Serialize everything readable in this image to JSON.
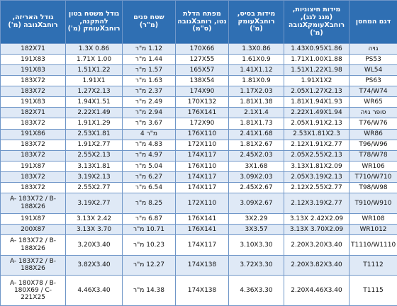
{
  "table": {
    "header": [
      "דגם המחסן",
      "מידות חיצוניות, (מגג לגג), רוחבXעומקXגובה (מ')",
      "מידות בסיס, רוחבXעומק (מ')",
      "מפתח הדלת נטו, רוחבXגובה (ס\"מ)",
      "שטח פנים (מ\"ר)",
      "גודל משטח בטון להתקנה, רוחבXעומק (מ')",
      "גודל האריזה, רוחבXגובה (מ')"
    ],
    "rows": [
      [
        "גויה",
        "1.43X0.95X1.86",
        "1.3X0.86",
        "170X66",
        "1.12 מ\"ר",
        "1.3X 0.86",
        "182X71"
      ],
      [
        "PS53",
        "1.71X1.00X1.88",
        "1.61X0.9",
        "127X55",
        "1.44 מ\"ר",
        "1.71X 1.00",
        "191X83"
      ],
      [
        "WL54",
        "1.51X1.22X1.98",
        "1.41X1.12",
        "165X57",
        "1.57 מ\"ר",
        "1.51X1.22",
        "191X83"
      ],
      [
        "PS63",
        "1.91X1X2",
        "1.81X0.9",
        "138X54",
        "1.63 מ\"ר",
        "1.91X1",
        "183X72"
      ],
      [
        "T74/W74",
        "2.05X1.27X2.13",
        "1.17X2.03",
        "174X90",
        "2.37 מ\"ר",
        "1.27X2.13",
        "183X72"
      ],
      [
        "WR65",
        "1.81X1.94X1.93",
        "1.81X1.38",
        "170X132",
        "2.49 מ\"ר",
        "1.94X1.51",
        "191X83"
      ],
      [
        "סופר גויה",
        "2.22X1.49X1.94",
        "2.1X1.4",
        "176X141",
        "2.94 מ\"ר",
        "2.22X1.49",
        "182X71"
      ],
      [
        "T76/W76",
        "2.05X1.91X2.13",
        "1.81X1.73",
        "172X90",
        "3.67 מ\"ר",
        "1.91X1.29",
        "183X72"
      ],
      [
        "WR86",
        "2.53X1.81X2.3",
        "2.41X1.68",
        "176X110",
        "מ\"ר 4",
        "2.53X1.81",
        "191X86"
      ],
      [
        "T96/W96",
        "2.12X1.91X2.77",
        "1.81X2.67",
        "172X110",
        "4.83 מ\"ר",
        "1.91X2.77",
        "183X72"
      ],
      [
        "T78/W78",
        "2.05X2.55X2.13",
        "2.45X2.03",
        "174X117",
        "4.97 מ\"ר",
        "2.55X2.13",
        "183X72"
      ],
      [
        "WR106",
        "3.13X1.81X2.09",
        "3X1.68",
        "176X110",
        "5.04 מ\"ר",
        "3.13X1.81",
        "191X87"
      ],
      [
        "T710/W710",
        "2.05X3.19X2.13",
        "3.09X2.03",
        "174X117",
        "6.27 מ\"ר",
        "3.19X2.13",
        "183X72"
      ],
      [
        "T98/W98",
        "2.12X2.55X2.77",
        "2.45X2.67",
        "174X117",
        "6.54 מ\"ר",
        "2.55X2.77",
        "183X72"
      ],
      [
        "T910/W910",
        "2.12X3.19X2.77",
        "3.09X2.67",
        "172X110",
        "8.25 מ\"ר",
        "3.19X2.77",
        "A- 183X72 / B-188X26"
      ],
      [
        "WR108",
        "3.13X 2.42X2.09",
        "3X2.29",
        "176X141",
        "6.87 מ\"ר",
        "3.13X 2.42",
        "191X87"
      ],
      [
        "WR1012",
        "3.13X 3.70X2.09",
        "3X3.57",
        "176X141",
        "10.71 מ\"ר",
        "3.13X 3.70",
        "200X87"
      ],
      [
        "T1110/W1110",
        "2.20X3.20X3.40",
        "3.10X3.30",
        "174X117",
        "10.23 מ\"ר",
        "3.20X3.40",
        "A- 183X72 / B-188X26"
      ],
      [
        "T1112",
        "2.20X3.82X3.40",
        "3.72X3.30",
        "174X138",
        "12.27 מ\"ר",
        "3.82X3.40",
        "A- 183X72 / B-188X26"
      ],
      [
        "T1115",
        "2.20X4.46X3.40",
        "4.36X3.30",
        "174X138",
        "14.38 מ\"ר",
        "4.46X3.40",
        "A- 180X78 / B-180X69 / C- 221X25"
      ]
    ]
  }
}
